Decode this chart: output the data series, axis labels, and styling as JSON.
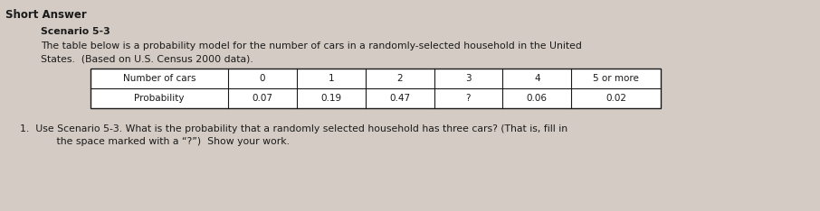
{
  "title_header": "Short Answer",
  "scenario_title": "Scenario 5-3",
  "scenario_text_line1": "The table below is a probability model for the number of cars in a randomly-selected household in the United",
  "scenario_text_line2": "States.  (Based on U.S. Census 2000 data).",
  "table_headers": [
    "Number of cars",
    "0",
    "1",
    "2",
    "3",
    "4",
    "5 or more"
  ],
  "table_row_label": "Probability",
  "table_values": [
    "0.07",
    "0.19",
    "0.47",
    "?",
    "0.06",
    "0.02"
  ],
  "question_text_line1": "1.  Use Scenario 5-3. What is the probability that a randomly selected household has three cars? (That is, fill in",
  "question_text_line2": "     the space marked with a “?”)  Show your work.",
  "background_color": "#d4ccc4",
  "text_color": "#1a1a1a",
  "fs_title": 8.5,
  "fs_body": 7.8,
  "fs_table": 7.5,
  "col_widths_rel": [
    2.0,
    1.0,
    1.0,
    1.0,
    1.0,
    1.0,
    1.3
  ]
}
